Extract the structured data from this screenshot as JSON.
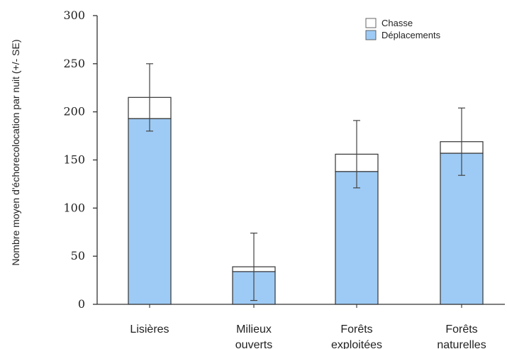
{
  "chart_data": {
    "type": "bar",
    "stacked": true,
    "categories": [
      [
        "Lisières"
      ],
      [
        "Milieux",
        "ouverts"
      ],
      [
        "Forêts",
        "exploitées"
      ],
      [
        "Forêts",
        "naturelles"
      ]
    ],
    "series": [
      {
        "name": "Déplacements",
        "values": [
          193,
          34,
          138,
          157
        ],
        "color": "#9ecbf5"
      },
      {
        "name": "Chasse",
        "values": [
          22,
          5,
          18,
          12
        ],
        "color": "#ffffff"
      }
    ],
    "totals": [
      215,
      39,
      156,
      169
    ],
    "error_bars": [
      {
        "low": 180,
        "high": 250
      },
      {
        "low": 4,
        "high": 74
      },
      {
        "low": 121,
        "high": 191
      },
      {
        "low": 134,
        "high": 204
      }
    ],
    "ylabel": "Nombre moyen d'échorecolocation par nuit (+/- SE)",
    "ylim": [
      0,
      300
    ],
    "yticks": [
      0,
      50,
      100,
      150,
      200,
      250,
      300
    ],
    "legend": {
      "placement": "top-right",
      "entries": [
        "Chasse",
        "Déplacements"
      ]
    },
    "grid": false
  }
}
